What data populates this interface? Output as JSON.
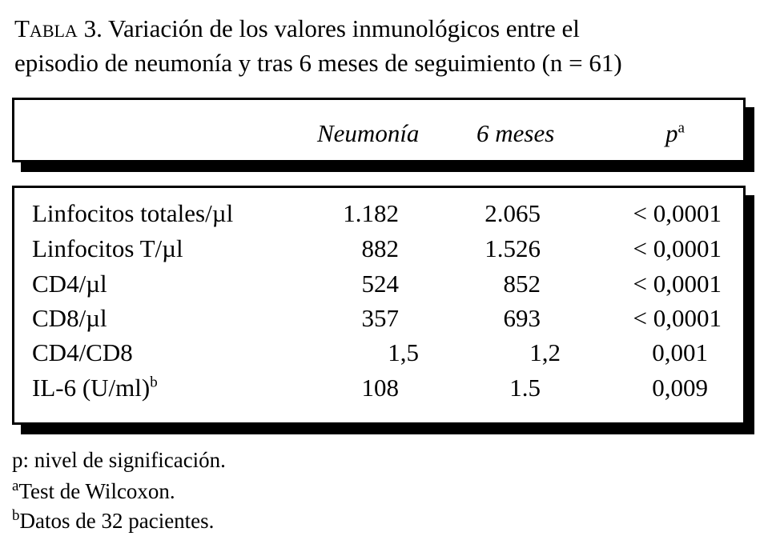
{
  "title": {
    "label": "Tabla",
    "line1_rest": " 3. Variación de los valores inmunológicos entre el",
    "line2": "episodio de neumonía y tras 6 meses de seguimiento (n = 61)"
  },
  "table": {
    "headers": [
      "Neumonía",
      "6 meses",
      "p"
    ],
    "p_sup": "a",
    "rows": [
      {
        "label": "Linfocitos totales/µl",
        "sup": "",
        "neumonia": "1.182",
        "meses": "2.065",
        "p": "< 0,0001"
      },
      {
        "label": "Linfocitos T/µl",
        "sup": "",
        "neumonia": "882",
        "meses": "1.526",
        "p": "< 0,0001"
      },
      {
        "label": "CD4/µl",
        "sup": "",
        "neumonia": "524",
        "meses": "852",
        "p": "< 0,0001"
      },
      {
        "label": "CD8/µl",
        "sup": "",
        "neumonia": "357",
        "meses": "693",
        "p": "< 0,0001"
      },
      {
        "label": "CD4/CD8",
        "sup": "",
        "neumonia": "1,5",
        "meses": "1,2",
        "p": "0,001"
      },
      {
        "label": "IL-6 (U/ml)",
        "sup": "b",
        "neumonia": "108",
        "meses": "1.5",
        "p": "0,009"
      }
    ]
  },
  "footnotes": [
    {
      "mark": "",
      "text": "p: nivel de significación."
    },
    {
      "mark": "a",
      "text": "Test de Wilcoxon."
    },
    {
      "mark": "b",
      "text": "Datos de 32 pacientes."
    }
  ]
}
